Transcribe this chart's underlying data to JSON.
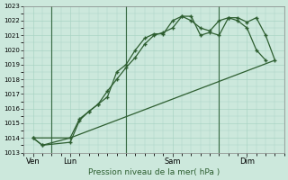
{
  "xlabel": "Pression niveau de la mer( hPa )",
  "background_color": "#cce8dc",
  "grid_color": "#aad4c4",
  "line_color": "#2d5e30",
  "ylim": [
    1013,
    1023
  ],
  "yticks": [
    1013,
    1014,
    1015,
    1016,
    1017,
    1018,
    1019,
    1020,
    1021,
    1022,
    1023
  ],
  "xlim": [
    0,
    14
  ],
  "xtick_positions": [
    0.5,
    2.5,
    8.0,
    12.0
  ],
  "xtick_labels": [
    "Ven",
    "Lun",
    "Sam",
    "Dim"
  ],
  "vline_positions": [
    1.5,
    5.5,
    10.5
  ],
  "series1_x": [
    0.5,
    1.0,
    2.5,
    3.0,
    3.5,
    4.0,
    4.5,
    5.0,
    5.5,
    6.0,
    6.5,
    7.0,
    7.5,
    8.0,
    8.5,
    9.0,
    9.5,
    10.0,
    10.5,
    11.0,
    11.5,
    12.0,
    12.5,
    13.0,
    13.5
  ],
  "series1_y": [
    1014.0,
    1013.5,
    1013.7,
    1015.2,
    1015.8,
    1016.3,
    1016.8,
    1018.5,
    1019.0,
    1020.0,
    1020.8,
    1021.1,
    1021.1,
    1022.0,
    1022.3,
    1022.3,
    1021.0,
    1021.2,
    1021.0,
    1022.2,
    1022.2,
    1021.9,
    1022.2,
    1021.0,
    1019.3
  ],
  "series2_x": [
    0.5,
    1.0,
    2.5,
    3.0,
    3.5,
    4.0,
    4.5,
    5.0,
    5.5,
    6.0,
    6.5,
    7.0,
    7.5,
    8.0,
    8.5,
    9.0,
    9.5,
    10.0,
    10.5,
    11.0,
    11.5,
    12.0,
    12.5,
    13.0
  ],
  "series2_y": [
    1014.0,
    1013.5,
    1014.0,
    1015.3,
    1015.8,
    1016.3,
    1017.2,
    1018.0,
    1018.8,
    1019.5,
    1020.4,
    1021.0,
    1021.2,
    1021.5,
    1022.3,
    1022.0,
    1021.5,
    1021.3,
    1022.0,
    1022.2,
    1022.0,
    1021.5,
    1020.0,
    1019.3
  ],
  "series3_x": [
    0.5,
    2.5,
    13.5
  ],
  "series3_y": [
    1014.0,
    1014.0,
    1019.3
  ]
}
